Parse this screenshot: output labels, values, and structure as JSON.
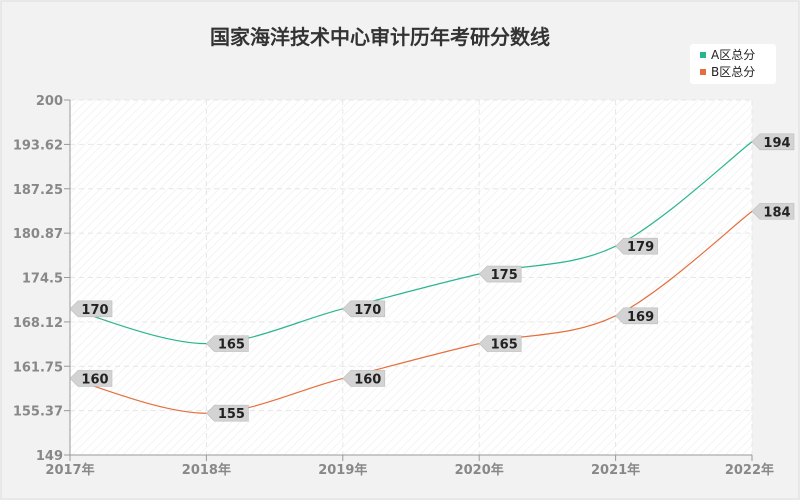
{
  "chart_data": {
    "type": "line",
    "title": "国家海洋技术中心审计历年考研分数线",
    "xlabel": "",
    "ylabel": "",
    "categories": [
      "2017年",
      "2018年",
      "2019年",
      "2020年",
      "2021年",
      "2022年"
    ],
    "y_ticks": [
      "149",
      "155.37",
      "161.75",
      "168.12",
      "174.5",
      "180.87",
      "187.25",
      "193.62",
      "200"
    ],
    "ylim": [
      149,
      200
    ],
    "grid": true,
    "legend_position": "top-right",
    "series": [
      {
        "name": "A区总分",
        "color": "#2bb58f",
        "values": [
          170,
          165,
          170,
          175,
          179,
          194
        ]
      },
      {
        "name": "B区总分",
        "color": "#e4703f",
        "values": [
          160,
          155,
          160,
          165,
          169,
          184
        ]
      }
    ]
  }
}
